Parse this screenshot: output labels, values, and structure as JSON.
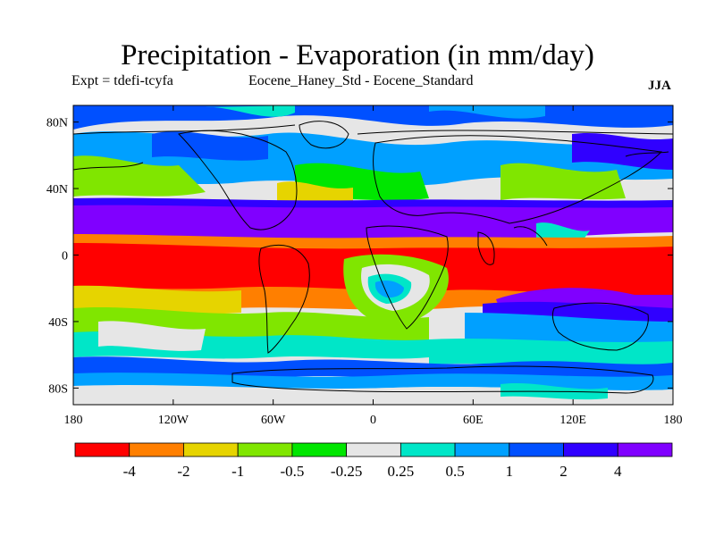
{
  "header": {
    "title": "Precipitation - Evaporation (in mm/day)",
    "experiment": "Expt = tdefi-tcyfa",
    "comparison": "Eocene_Haney_Std - Eocene_Standard",
    "season": "JJA"
  },
  "map": {
    "lat_ticks": [
      "80N",
      "40N",
      "0",
      "40S",
      "80S"
    ],
    "lon_ticks": [
      "180",
      "120W",
      "60W",
      "0",
      "60E",
      "120E",
      "180"
    ],
    "coastline_color": "#000000",
    "background_color": "#e6e6e6"
  },
  "colorbar": {
    "colors": [
      "#ff0000",
      "#ff7f00",
      "#e6d400",
      "#80e600",
      "#00e600",
      "#e6e6e6",
      "#00e6c8",
      "#00a0ff",
      "#0050ff",
      "#3000ff",
      "#8000ff"
    ],
    "labels": [
      "-4",
      "-2",
      "-1",
      "-0.5",
      "-0.25",
      "0.25",
      "0.5",
      "1",
      "2",
      "4"
    ]
  }
}
